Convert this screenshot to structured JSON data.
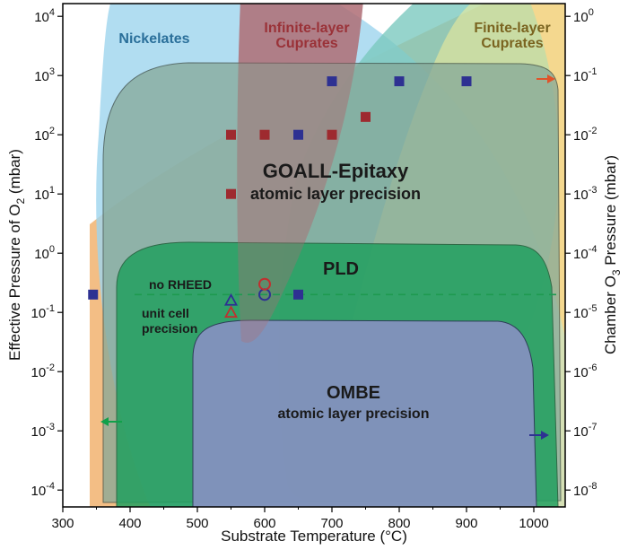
{
  "chart_data": {
    "type": "scatter",
    "title": "",
    "xlabel": "Substrate Temperature (°C)",
    "ylabel": "Effective Pressure of O2 (mbar)",
    "ylabel_main": "Effective Pressure of O",
    "ylabel_sub": "2",
    "ylabel_tail": " (mbar)",
    "y2label": "Chamber O3 Pressure (mbar)",
    "y2label_main": "Chamber O",
    "y2label_sub": "3",
    "y2label_tail": " Pressure (mbar)",
    "xlim": [
      300,
      1050
    ],
    "ylim": [
      0.0001,
      10000
    ],
    "yscale": "log",
    "y2lim": [
      1e-08,
      1
    ],
    "y2scale": "log",
    "grid": false,
    "x_ticks": [
      300,
      400,
      500,
      600,
      700,
      800,
      900,
      1000
    ],
    "x_tick_labels": [
      "300",
      "400",
      "500",
      "600",
      "700",
      "800",
      "900",
      "1000"
    ],
    "y_ticks": [
      {
        "base": "10",
        "exp": "-4",
        "value": 0.0001
      },
      {
        "base": "10",
        "exp": "-3",
        "value": 0.001
      },
      {
        "base": "10",
        "exp": "-2",
        "value": 0.01
      },
      {
        "base": "10",
        "exp": "-1",
        "value": 0.1
      },
      {
        "base": "10",
        "exp": "0",
        "value": 1
      },
      {
        "base": "10",
        "exp": "1",
        "value": 10
      },
      {
        "base": "10",
        "exp": "2",
        "value": 100
      },
      {
        "base": "10",
        "exp": "3",
        "value": 1000
      },
      {
        "base": "10",
        "exp": "4",
        "value": 10000
      }
    ],
    "y2_ticks": [
      {
        "base": "10",
        "exp": "-8",
        "value": 1e-08
      },
      {
        "base": "10",
        "exp": "-7",
        "value": 1e-07
      },
      {
        "base": "10",
        "exp": "-6",
        "value": 1e-06
      },
      {
        "base": "10",
        "exp": "-5",
        "value": 1e-05
      },
      {
        "base": "10",
        "exp": "-4",
        "value": 0.0001
      },
      {
        "base": "10",
        "exp": "-3",
        "value": 0.001
      },
      {
        "base": "10",
        "exp": "-2",
        "value": 0.01
      },
      {
        "base": "10",
        "exp": "-1",
        "value": 0.1
      },
      {
        "base": "10",
        "exp": "0",
        "value": 1
      }
    ],
    "regions": [
      {
        "name": "Nickelates",
        "color": "#9dd5ee",
        "label_color": "#2a6f9a"
      },
      {
        "name": "Infinite-layer Cuprates",
        "line1": "Infinite-layer",
        "line2": "Cuprates",
        "color": "#b07078",
        "label_color": "#9a3238"
      },
      {
        "name": "Finite-layer Cuprates",
        "line1": "Finite-layer",
        "line2": "Cuprates",
        "color": "#f4ec98",
        "label_color": "#7a6420"
      },
      {
        "name": "GOALL-Epitaxy",
        "subtitle": "atomic layer precision",
        "color": "#85a898"
      },
      {
        "name": "PLD",
        "color": "#22a060"
      },
      {
        "name": "OMBE",
        "subtitle": "atomic layer precision",
        "color": "#8d90c8"
      },
      {
        "name": "orange",
        "color": "#f2b778"
      },
      {
        "name": "teal",
        "color": "#7cc9bf"
      }
    ],
    "annotations": {
      "no_rheed": "no RHEED",
      "unit_cell_line1": "unit cell",
      "unit_cell_line2": "precision",
      "dashed_line_pressure": 0.2
    },
    "series": [
      {
        "name": "Nickelates",
        "marker": "square",
        "color": "#2e3192",
        "points": [
          [
            345,
            0.2
          ],
          [
            650,
            0.2
          ],
          [
            700,
            800
          ],
          [
            800,
            800
          ],
          [
            900,
            800
          ],
          [
            650,
            100
          ]
        ]
      },
      {
        "name": "Infinite-layer Cuprates",
        "marker": "square",
        "color": "#9e2a2f",
        "points": [
          [
            550,
            100
          ],
          [
            600,
            100
          ],
          [
            700,
            100
          ],
          [
            750,
            200
          ],
          [
            550,
            10
          ]
        ]
      },
      {
        "name": "Nickelates",
        "marker": "circle-open",
        "color": "#2e3192",
        "points": [
          [
            600,
            0.2
          ]
        ]
      },
      {
        "name": "Infinite-layer Cuprates",
        "marker": "circle-open",
        "color": "#c0302f",
        "points": [
          [
            600,
            0.3
          ]
        ]
      },
      {
        "name": "Nickelates",
        "marker": "triangle-open",
        "color": "#2e3192",
        "points": [
          [
            550,
            0.16
          ]
        ]
      },
      {
        "name": "Infinite-layer Cuprates",
        "marker": "triangle-open",
        "color": "#c0302f",
        "points": [
          [
            550,
            0.1
          ]
        ]
      }
    ]
  },
  "colors": {
    "arrow_green": "#11a04a",
    "arrow_navy": "#2e3192",
    "arrow_orange": "#e0542a",
    "dashed": "#1e9a50"
  }
}
